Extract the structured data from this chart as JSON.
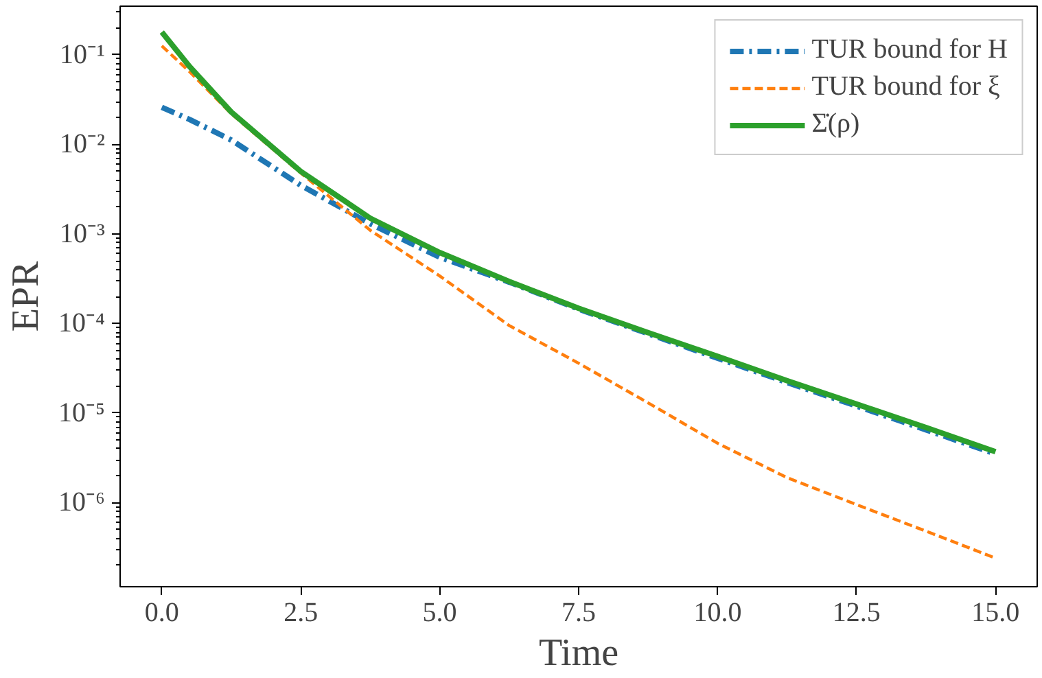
{
  "chart_data": {
    "type": "line",
    "xlabel": "Time",
    "ylabel": "EPR",
    "log": "y",
    "grid": false,
    "legend": "top right",
    "xlim": [
      -0.75,
      15.75
    ],
    "xticks": [
      {
        "value": 0,
        "label": "0.0"
      },
      2.5,
      {
        "value": 5,
        "label": "5.0"
      },
      7.5,
      {
        "value": 10,
        "label": "10.0"
      },
      12.5,
      {
        "value": 15,
        "label": "15.0"
      }
    ],
    "ylim": [
      1.15e-07,
      0.35
    ],
    "yticks": [
      {
        "value": 1e-06,
        "label": "10⁻⁶"
      },
      {
        "value": 1e-05,
        "label": "10⁻⁵"
      },
      {
        "value": 0.0001,
        "label": "10⁻⁴"
      },
      {
        "value": 0.001,
        "label": "10⁻³"
      },
      {
        "value": 0.01,
        "label": "10⁻²"
      },
      {
        "value": 0.1,
        "label": "10⁻¹"
      }
    ],
    "x": [
      0,
      0.5,
      1.25,
      2.5,
      3.75,
      5,
      6.25,
      7.5,
      8.75,
      10,
      11.25,
      12.5,
      13.75,
      15
    ],
    "series": [
      {
        "name": "TUR bound for H",
        "color": "#1f77b4",
        "line_style": "dashdot",
        "values": [
          0.026,
          0.019,
          0.0112,
          0.0035,
          0.0013,
          0.00055,
          0.00029,
          0.000145,
          7.7e-05,
          4.1e-05,
          2.2e-05,
          1.2e-05,
          6.5e-06,
          3.5e-06
        ]
      },
      {
        "name": "TUR bound for ξ",
        "color": "#ff7f0e",
        "line_style": "dashed",
        "values": [
          0.126,
          0.065,
          0.022,
          0.0048,
          0.0011,
          0.00034,
          9.5e-05,
          3.6e-05,
          1.3e-05,
          4.6e-06,
          1.9e-06,
          9.5e-07,
          4.8e-07,
          2.4e-07
        ]
      },
      {
        "name": "Σ̇(ρ)",
        "color": "#2ca02c",
        "line_style": "solid",
        "values": [
          0.18,
          0.074,
          0.023,
          0.005,
          0.0015,
          0.00062,
          0.000295,
          0.000148,
          7.9e-05,
          4.3e-05,
          2.3e-05,
          1.26e-05,
          6.9e-06,
          3.7e-06
        ]
      }
    ]
  }
}
